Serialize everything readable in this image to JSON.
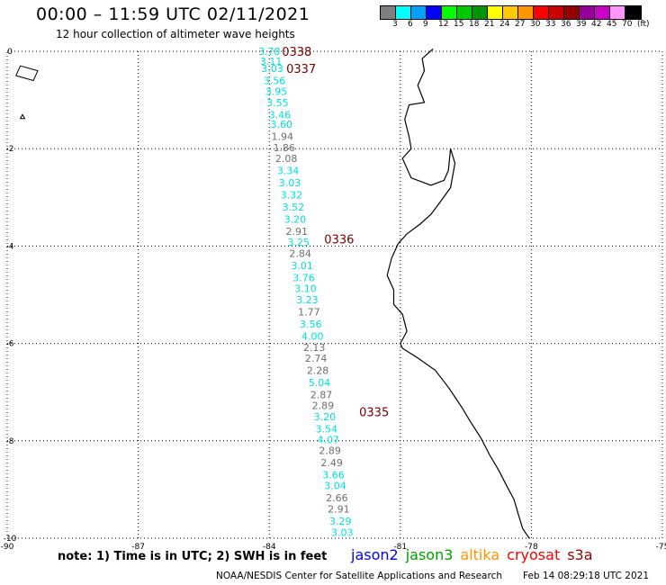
{
  "header": {
    "title": "00:00 – 11:59 UTC 02/11/2021",
    "subtitle": "12 hour collection of altimeter wave heights"
  },
  "colorbar": {
    "colors": [
      "#7f7f7f",
      "#00ffff",
      "#00a0ff",
      "#0000ff",
      "#00ff00",
      "#00c800",
      "#009600",
      "#ffff00",
      "#ffc800",
      "#ff9600",
      "#ff0000",
      "#c80000",
      "#960000",
      "#960096",
      "#c800c8",
      "#ff96ff",
      "#000000"
    ],
    "labels": [
      "3",
      "6",
      "9",
      "12",
      "15",
      "18",
      "21",
      "24",
      "27",
      "30",
      "33",
      "36",
      "39",
      "42",
      "45",
      "70",
      "(ft)"
    ]
  },
  "map": {
    "lon_range": [
      -90,
      -75
    ],
    "lat_range": [
      -10,
      0
    ],
    "lon_ticks": [
      "-90",
      "-87",
      "-84",
      "-81",
      "-78",
      "-75"
    ],
    "lat_ticks": [
      "0",
      "-2",
      "-4",
      "-6",
      "-8",
      "-10"
    ],
    "times": [
      {
        "label": "0338",
        "lon": -83.37,
        "lat": 0.0
      },
      {
        "label": "0337",
        "lon": -83.27,
        "lat": -0.35
      },
      {
        "label": "0336",
        "lon": -82.4,
        "lat": -3.85
      },
      {
        "label": "0335",
        "lon": -81.6,
        "lat": -7.4
      }
    ],
    "observations": [
      {
        "v": "3.78",
        "c": "cyan",
        "lon": -84.0,
        "lat": 0.0
      },
      {
        "v": "3.11",
        "c": "cyan",
        "lon": -83.96,
        "lat": -0.2
      },
      {
        "v": "3.03",
        "c": "cyan",
        "lon": -83.93,
        "lat": -0.35
      },
      {
        "v": "3.56",
        "c": "cyan",
        "lon": -83.88,
        "lat": -0.6
      },
      {
        "v": "3.95",
        "c": "cyan",
        "lon": -83.84,
        "lat": -0.82
      },
      {
        "v": "3.55",
        "c": "cyan",
        "lon": -83.81,
        "lat": -1.05
      },
      {
        "v": "3.46",
        "c": "cyan",
        "lon": -83.76,
        "lat": -1.3
      },
      {
        "v": "3.60",
        "c": "cyan",
        "lon": -83.72,
        "lat": -1.5
      },
      {
        "v": "1.94",
        "c": "gray",
        "lon": -83.7,
        "lat": -1.75
      },
      {
        "v": "1.86",
        "c": "gray",
        "lon": -83.66,
        "lat": -1.98
      },
      {
        "v": "2.08",
        "c": "gray",
        "lon": -83.61,
        "lat": -2.2
      },
      {
        "v": "3.34",
        "c": "cyan",
        "lon": -83.57,
        "lat": -2.45
      },
      {
        "v": "3.03",
        "c": "cyan",
        "lon": -83.53,
        "lat": -2.7
      },
      {
        "v": "3.32",
        "c": "cyan",
        "lon": -83.49,
        "lat": -2.95
      },
      {
        "v": "3.52",
        "c": "cyan",
        "lon": -83.45,
        "lat": -3.2
      },
      {
        "v": "3.20",
        "c": "cyan",
        "lon": -83.41,
        "lat": -3.45
      },
      {
        "v": "2.91",
        "c": "gray",
        "lon": -83.37,
        "lat": -3.7
      },
      {
        "v": "3.25",
        "c": "cyan",
        "lon": -83.33,
        "lat": -3.92
      },
      {
        "v": "2.84",
        "c": "gray",
        "lon": -83.29,
        "lat": -4.15
      },
      {
        "v": "3.01",
        "c": "cyan",
        "lon": -83.25,
        "lat": -4.4
      },
      {
        "v": "3.76",
        "c": "cyan",
        "lon": -83.21,
        "lat": -4.65
      },
      {
        "v": "3.10",
        "c": "cyan",
        "lon": -83.17,
        "lat": -4.87
      },
      {
        "v": "3.23",
        "c": "cyan",
        "lon": -83.13,
        "lat": -5.1
      },
      {
        "v": "1.77",
        "c": "gray",
        "lon": -83.09,
        "lat": -5.35
      },
      {
        "v": "3.56",
        "c": "cyan",
        "lon": -83.05,
        "lat": -5.6
      },
      {
        "v": "4.00",
        "c": "cyan",
        "lon": -83.01,
        "lat": -5.85
      },
      {
        "v": "2.13",
        "c": "gray",
        "lon": -82.97,
        "lat": -6.08
      },
      {
        "v": "2.74",
        "c": "gray",
        "lon": -82.93,
        "lat": -6.3
      },
      {
        "v": "2.28",
        "c": "gray",
        "lon": -82.89,
        "lat": -6.55
      },
      {
        "v": "5.04",
        "c": "cyan",
        "lon": -82.85,
        "lat": -6.8
      },
      {
        "v": "2.87",
        "c": "gray",
        "lon": -82.81,
        "lat": -7.05
      },
      {
        "v": "2.89",
        "c": "gray",
        "lon": -82.77,
        "lat": -7.27
      },
      {
        "v": "3.20",
        "c": "cyan",
        "lon": -82.73,
        "lat": -7.5
      },
      {
        "v": "3.54",
        "c": "cyan",
        "lon": -82.69,
        "lat": -7.75
      },
      {
        "v": "4.07",
        "c": "cyan",
        "lon": -82.65,
        "lat": -7.98
      },
      {
        "v": "2.89",
        "c": "gray",
        "lon": -82.61,
        "lat": -8.2
      },
      {
        "v": "2.49",
        "c": "gray",
        "lon": -82.57,
        "lat": -8.45
      },
      {
        "v": "3.66",
        "c": "cyan",
        "lon": -82.53,
        "lat": -8.7
      },
      {
        "v": "3.04",
        "c": "cyan",
        "lon": -82.49,
        "lat": -8.92
      },
      {
        "v": "2.66",
        "c": "gray",
        "lon": -82.45,
        "lat": -9.17
      },
      {
        "v": "2.91",
        "c": "gray",
        "lon": -82.41,
        "lat": -9.4
      },
      {
        "v": "3.29",
        "c": "cyan",
        "lon": -82.37,
        "lat": -9.65
      },
      {
        "v": "3.03",
        "c": "cyan",
        "lon": -82.33,
        "lat": -9.88
      }
    ],
    "coastline": [
      [
        -80.25,
        0.05
      ],
      [
        -80.5,
        -0.15
      ],
      [
        -80.45,
        -0.4
      ],
      [
        -80.6,
        -0.7
      ],
      [
        -80.45,
        -1.05
      ],
      [
        -80.8,
        -1.1
      ],
      [
        -80.9,
        -1.4
      ],
      [
        -80.8,
        -1.75
      ],
      [
        -80.75,
        -2.0
      ],
      [
        -80.95,
        -2.2
      ],
      [
        -80.75,
        -2.6
      ],
      [
        -80.3,
        -2.75
      ],
      [
        -80.0,
        -2.65
      ],
      [
        -79.9,
        -2.45
      ],
      [
        -79.85,
        -2.0
      ],
      [
        -79.75,
        -2.3
      ],
      [
        -79.85,
        -2.8
      ],
      [
        -80.05,
        -3.05
      ],
      [
        -80.3,
        -3.35
      ],
      [
        -80.55,
        -3.55
      ],
      [
        -80.85,
        -3.75
      ],
      [
        -81.05,
        -3.95
      ],
      [
        -81.2,
        -4.25
      ],
      [
        -81.3,
        -4.6
      ],
      [
        -81.15,
        -4.9
      ],
      [
        -81.15,
        -5.2
      ],
      [
        -80.95,
        -5.4
      ],
      [
        -80.85,
        -5.75
      ],
      [
        -81.0,
        -6.0
      ],
      [
        -80.95,
        -6.1
      ],
      [
        -80.6,
        -6.3
      ],
      [
        -80.2,
        -6.55
      ],
      [
        -79.9,
        -6.9
      ],
      [
        -79.6,
        -7.3
      ],
      [
        -79.4,
        -7.6
      ],
      [
        -79.15,
        -7.95
      ],
      [
        -78.95,
        -8.3
      ],
      [
        -78.75,
        -8.6
      ],
      [
        -78.55,
        -8.95
      ],
      [
        -78.4,
        -9.2
      ],
      [
        -78.3,
        -9.5
      ],
      [
        -78.2,
        -9.8
      ],
      [
        -78.05,
        -10.0
      ]
    ],
    "islands": [
      [
        [
          -89.7,
          -0.3
        ],
        [
          -89.3,
          -0.4
        ],
        [
          -89.4,
          -0.6
        ],
        [
          -89.8,
          -0.5
        ],
        [
          -89.7,
          -0.3
        ]
      ],
      [
        [
          -89.65,
          -1.3
        ],
        [
          -89.6,
          -1.38
        ],
        [
          -89.7,
          -1.38
        ],
        [
          -89.65,
          -1.3
        ]
      ]
    ]
  },
  "footer": {
    "note": "note: 1) Time is in UTC; 2) SWH is in feet",
    "legend": [
      {
        "label": "jason2",
        "color": "#0000ff"
      },
      {
        "label": "jason3",
        "color": "#00a000"
      },
      {
        "label": "altika",
        "color": "#ff9600"
      },
      {
        "label": "cryosat",
        "color": "#ff0000"
      },
      {
        "label": "s3a",
        "color": "#960000"
      }
    ],
    "credit": "NOAA/NESDIS Center for Satellite Applications and Research",
    "timestamp": "Feb 14 08:29:18 UTC 2021"
  }
}
